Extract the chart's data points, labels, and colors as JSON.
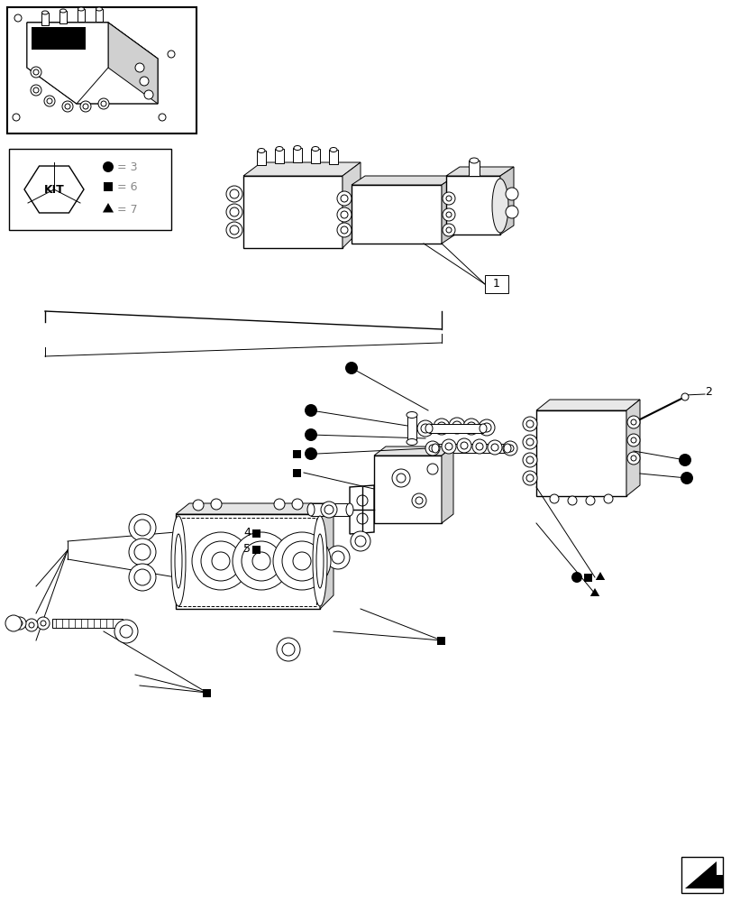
{
  "bg_color": "#ffffff",
  "line_color": "#000000",
  "mid_gray": "#888888",
  "kit_circle_val": "3",
  "kit_square_val": "6",
  "kit_triangle_val": "7",
  "label_1": "1",
  "label_2": "2",
  "label_4": "4",
  "label_5": "5"
}
